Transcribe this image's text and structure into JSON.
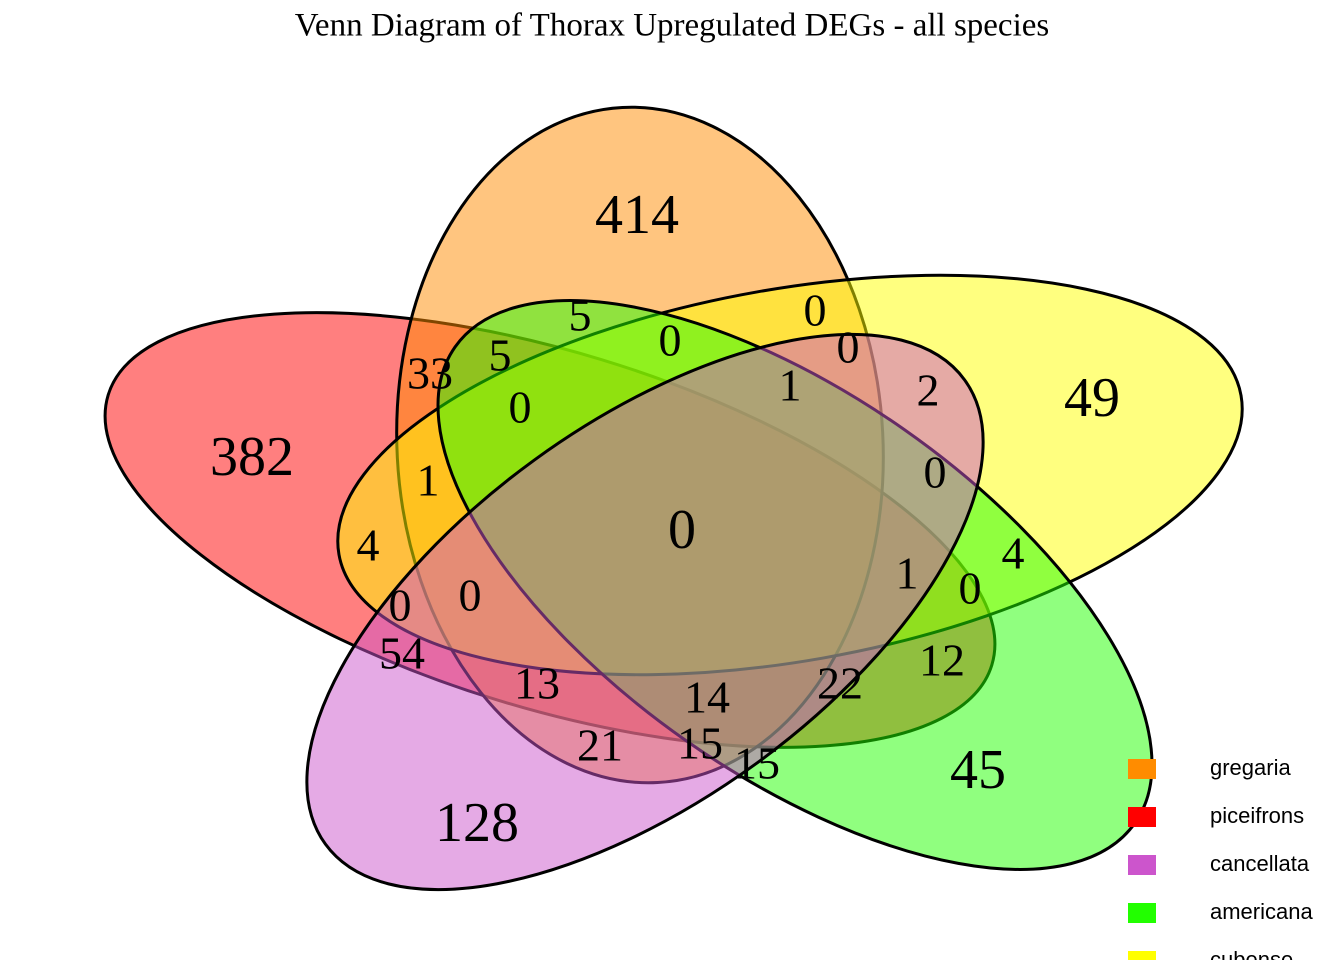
{
  "chart_data": {
    "type": "venn",
    "title": "Venn Diagram of Thorax Upregulated DEGs - all species",
    "sets": [
      {
        "name": "gregaria",
        "color": "#ff8c00"
      },
      {
        "name": "piceifrons",
        "color": "#ff0000"
      },
      {
        "name": "cancellata",
        "color": "#cc55cc"
      },
      {
        "name": "americana",
        "color": "#22ff00"
      },
      {
        "name": "cubense",
        "color": "#ffff00"
      }
    ],
    "regions": [
      414,
      5,
      0,
      33,
      5,
      0,
      0,
      1,
      2,
      49,
      382,
      0,
      1,
      0,
      0,
      4,
      4,
      1,
      0,
      0,
      0,
      54,
      12,
      13,
      22,
      14,
      21,
      15,
      15,
      45,
      128
    ]
  }
}
